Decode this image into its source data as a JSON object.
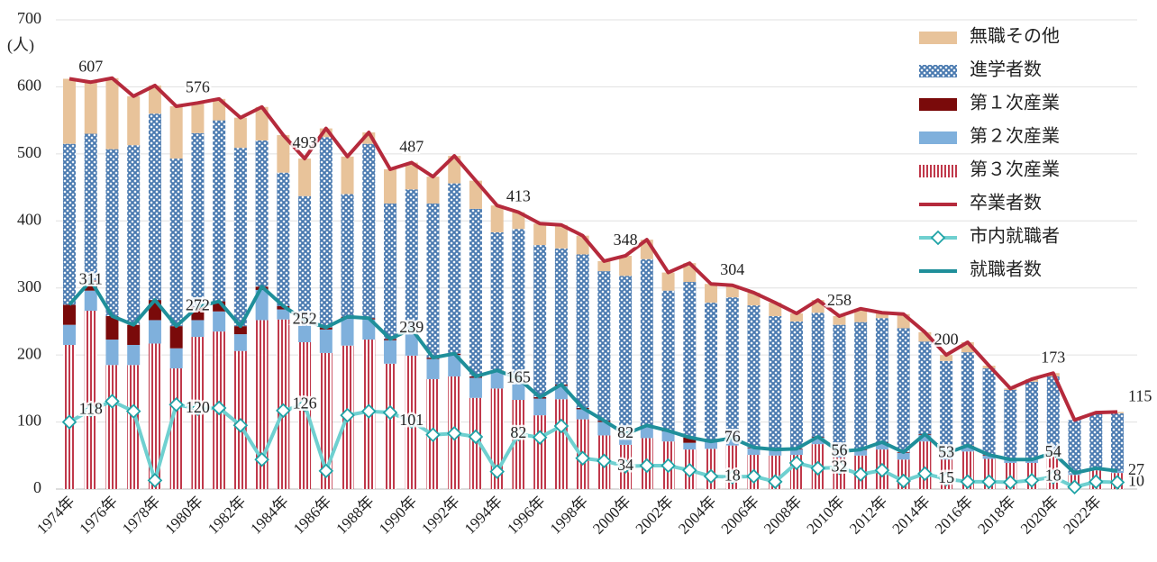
{
  "chart_data": {
    "type": "bar",
    "y_label": "(人)",
    "categories": [
      "1974年",
      null,
      "1976年",
      null,
      "1978年",
      null,
      "1980年",
      null,
      "1982年",
      null,
      "1984年",
      null,
      "1986年",
      null,
      "1988年",
      null,
      "1990年",
      null,
      "1992年",
      null,
      "1994年",
      null,
      "1996年",
      null,
      "1998年",
      null,
      "2000年",
      null,
      "2002年",
      null,
      "2004年",
      null,
      "2006年",
      null,
      "2008年",
      null,
      "2010年",
      null,
      "2012年",
      null,
      "2014年",
      null,
      "2016年",
      null,
      "2018年",
      null,
      "2020年",
      null,
      "2022年",
      null
    ],
    "ylim": [
      0,
      700
    ],
    "yticks": [
      0,
      100,
      200,
      300,
      400,
      500,
      600,
      700
    ],
    "grid": true,
    "legend": "top-right",
    "series": [
      {
        "name": "無職その他",
        "type": "bar",
        "color": "#e8c39a",
        "values": [
          97,
          77,
          106,
          73,
          42,
          78,
          45,
          32,
          45,
          50,
          56,
          56,
          13,
          56,
          17,
          51,
          40,
          40,
          41,
          42,
          40,
          25,
          32,
          35,
          28,
          15,
          30,
          29,
          27,
          28,
          28,
          18,
          19,
          20,
          12,
          19,
          13,
          20,
          8,
          21,
          14,
          9,
          15,
          4,
          2,
          4,
          5,
          0,
          1,
          2
        ]
      },
      {
        "name": "進学者数",
        "type": "bar",
        "color": "#4a7ab0",
        "pattern": "hatch",
        "values": [
          240,
          219,
          249,
          268,
          278,
          250,
          259,
          270,
          266,
          218,
          199,
          185,
          284,
          183,
          260,
          202,
          208,
          230,
          254,
          250,
          206,
          223,
          227,
          203,
          229,
          223,
          236,
          248,
          209,
          232,
          207,
          210,
          212,
          199,
          190,
          185,
          189,
          190,
          185,
          185,
          138,
          138,
          139,
          129,
          104,
          116,
          114,
          79,
          82,
          86
        ]
      },
      {
        "name": "第１次産業",
        "type": "bar",
        "color": "#7a0a0a",
        "values": [
          30,
          15,
          35,
          30,
          30,
          33,
          20,
          15,
          12,
          5,
          5,
          3,
          3,
          3,
          2,
          2,
          2,
          2,
          2,
          2,
          2,
          2,
          2,
          2,
          2,
          2,
          1,
          1,
          1,
          8,
          1,
          1,
          1,
          1,
          1,
          1,
          1,
          1,
          1,
          1,
          1,
          1,
          1,
          1,
          0,
          0,
          0,
          0,
          0,
          0
        ]
      },
      {
        "name": "第２次産業",
        "type": "bar",
        "color": "#7fb0dc",
        "values": [
          30,
          30,
          38,
          30,
          35,
          30,
          25,
          30,
          25,
          45,
          15,
          30,
          35,
          40,
          30,
          35,
          38,
          30,
          32,
          30,
          25,
          30,
          25,
          20,
          15,
          20,
          15,
          18,
          15,
          10,
          10,
          10,
          10,
          8,
          8,
          10,
          8,
          8,
          10,
          10,
          10,
          8,
          8,
          5,
          5,
          5,
          5,
          3,
          3,
          3
        ]
      },
      {
        "name": "第３次産業",
        "type": "bar",
        "color": "#c0394b",
        "pattern": "stripes",
        "values": [
          215,
          266,
          185,
          185,
          217,
          180,
          227,
          235,
          206,
          252,
          253,
          219,
          203,
          214,
          223,
          187,
          199,
          164,
          168,
          136,
          150,
          133,
          110,
          134,
          104,
          80,
          66,
          76,
          71,
          59,
          60,
          65,
          51,
          50,
          51,
          67,
          47,
          50,
          59,
          44,
          71,
          44,
          56,
          45,
          39,
          39,
          49,
          21,
          28,
          24
        ]
      },
      {
        "name": "卒業者数",
        "type": "line",
        "color": "#b52a3c",
        "values": [
          612,
          607,
          613,
          586,
          602,
          571,
          576,
          582,
          554,
          570,
          528,
          493,
          538,
          496,
          532,
          477,
          487,
          466,
          497,
          460,
          423,
          413,
          396,
          394,
          378,
          340,
          348,
          372,
          323,
          337,
          306,
          304,
          293,
          278,
          262,
          282,
          258,
          269,
          263,
          261,
          234,
          200,
          219,
          184,
          150,
          164,
          173,
          103,
          114,
          115
        ]
      },
      {
        "name": "市内就職者",
        "type": "line",
        "color": "#6fd0d0",
        "marker": "diamond",
        "values": [
          100,
          118,
          131,
          116,
          13,
          126,
          120,
          121,
          95,
          44,
          117,
          126,
          27,
          110,
          116,
          114,
          101,
          81,
          83,
          78,
          26,
          82,
          77,
          94,
          46,
          42,
          34,
          35,
          35,
          28,
          19,
          18,
          19,
          11,
          39,
          31,
          32,
          22,
          28,
          12,
          23,
          15,
          11,
          11,
          10,
          13,
          18,
          3,
          11,
          10
        ]
      },
      {
        "name": "就職者数",
        "type": "line",
        "color": "#1f8f9a",
        "values": [
          275,
          311,
          258,
          245,
          282,
          243,
          272,
          280,
          243,
          302,
          273,
          252,
          241,
          257,
          255,
          224,
          239,
          196,
          202,
          168,
          177,
          165,
          137,
          156,
          121,
          102,
          82,
          95,
          87,
          77,
          71,
          76,
          62,
          59,
          60,
          78,
          56,
          59,
          70,
          55,
          82,
          53,
          65,
          51,
          44,
          44,
          54,
          24,
          31,
          27
        ]
      }
    ]
  }
}
